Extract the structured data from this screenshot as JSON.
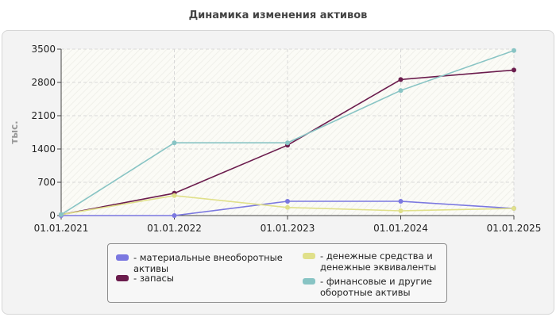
{
  "chart_data": {
    "type": "line",
    "title": "Динамика изменения активов",
    "xlabel": "",
    "ylabel": "тыс.",
    "x": [
      "01.01.2021",
      "01.01.2022",
      "01.01.2023",
      "01.01.2024",
      "01.01.2025"
    ],
    "ylim": [
      0,
      3500
    ],
    "yticks": [
      0,
      700,
      1400,
      2100,
      2800,
      3500
    ],
    "grid": true,
    "legend_position": "bottom",
    "series": [
      {
        "name": "материальные внеоборотные активы",
        "color": "#7b78e0",
        "values": [
          0,
          0,
          300,
          300,
          150
        ]
      },
      {
        "name": "запасы",
        "color": "#6b1c4d",
        "values": [
          20,
          470,
          1480,
          2860,
          3060
        ]
      },
      {
        "name": "денежные средства и денежные эквиваленты",
        "color": "#e0e08a",
        "values": [
          20,
          420,
          170,
          100,
          150
        ]
      },
      {
        "name": "финансовые и другие оборотные активы",
        "color": "#88c4c4",
        "values": [
          20,
          1530,
          1530,
          2630,
          3470
        ]
      }
    ]
  }
}
